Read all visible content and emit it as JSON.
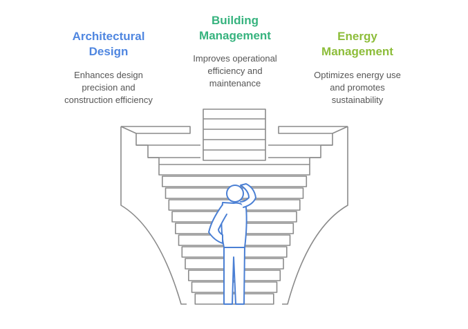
{
  "items": [
    {
      "title": "Architectural\nDesign",
      "description": "Enhances design\nprecision and\nconstruction efficiency",
      "color": "#4f86e0"
    },
    {
      "title": "Building\nManagement",
      "description": "Improves operational\nefficiency and\nmaintenance",
      "color": "#36b37e"
    },
    {
      "title": "Energy\nManagement",
      "description": "Optimizes energy use\nand promotes\nsustainability",
      "color": "#8dbd3a"
    }
  ],
  "colors": {
    "line": "#8a8a8a",
    "person": "#4a7fd4"
  }
}
